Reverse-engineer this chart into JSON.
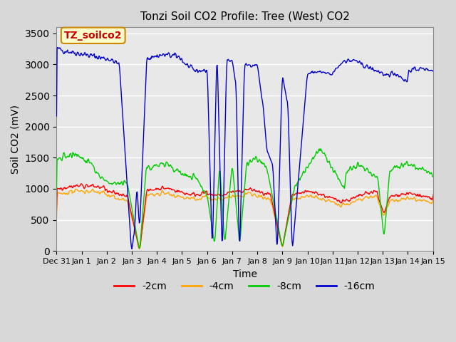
{
  "title": "Tonzi Soil CO2 Profile: Tree (West) CO2",
  "ylabel": "Soil CO2 (mV)",
  "xlabel": "Time",
  "legend_label": "TZ_soilco2",
  "ylim": [
    0,
    3600
  ],
  "yticks": [
    0,
    500,
    1000,
    1500,
    2000,
    2500,
    3000,
    3500
  ],
  "line_colors": {
    "-2cm": "#ff0000",
    "-4cm": "#ffa500",
    "-8cm": "#00cc00",
    "-16cm": "#0000cc"
  },
  "tick_labels": [
    "Dec 31",
    "Jan 1",
    "Jan 2",
    "Jan 3",
    "Jan 4",
    "Jan 5",
    "Jan 6",
    "Jan 7",
    "Jan 8",
    "Jan 9",
    "Jan 10",
    "Jan 11",
    "Jan 12",
    "Jan 13",
    "Jan 14",
    "Jan 15"
  ]
}
